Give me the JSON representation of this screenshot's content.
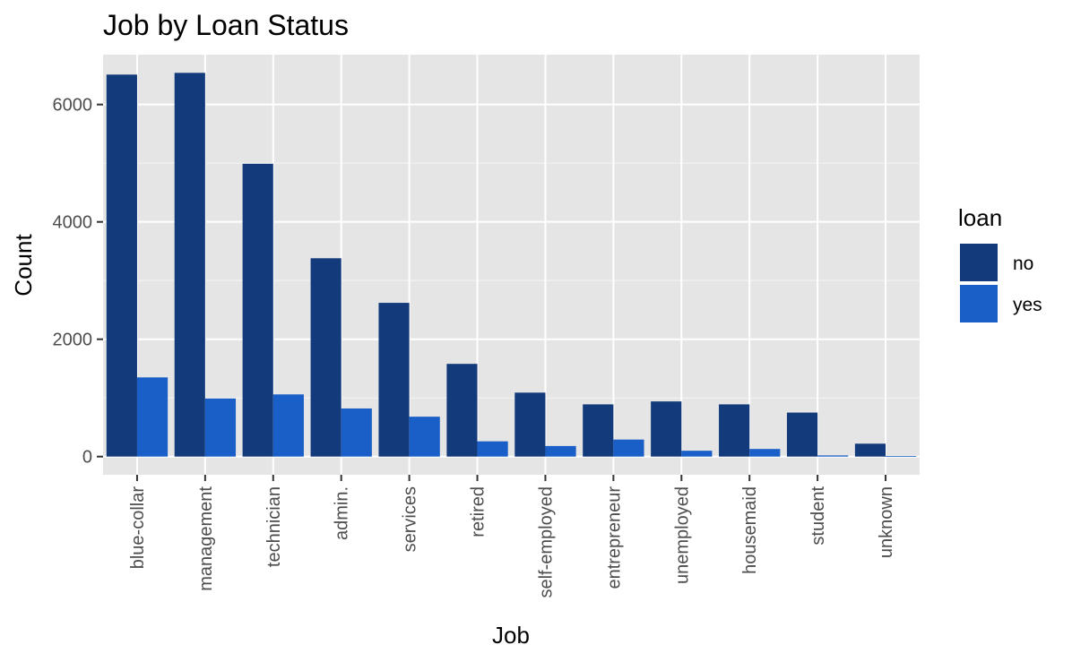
{
  "chart_data": {
    "type": "bar",
    "title": "Job by Loan Status",
    "xlabel": "Job",
    "ylabel": "Count",
    "categories": [
      "blue-collar",
      "management",
      "technician",
      "admin.",
      "services",
      "retired",
      "self-employed",
      "entrepreneur",
      "unemployed",
      "housemaid",
      "student",
      "unknown"
    ],
    "series": [
      {
        "name": "no",
        "values": [
          6510,
          6540,
          4990,
          3380,
          2620,
          1580,
          1090,
          890,
          940,
          890,
          750,
          220
        ]
      },
      {
        "name": "yes",
        "values": [
          1350,
          990,
          1060,
          820,
          680,
          260,
          180,
          290,
          100,
          130,
          20,
          10
        ]
      }
    ],
    "ylim": [
      -310,
      6850
    ],
    "yticks": [
      0,
      2000,
      4000,
      6000
    ],
    "ytick_labels": [
      "0",
      "2000",
      "4000",
      "6000"
    ],
    "legend": {
      "title": "loan",
      "position": "right"
    },
    "grid": true,
    "colors": {
      "no": "#133a7a",
      "yes": "#1a5fc7",
      "panel": "#e5e5e5",
      "grid": "#ffffff"
    }
  }
}
